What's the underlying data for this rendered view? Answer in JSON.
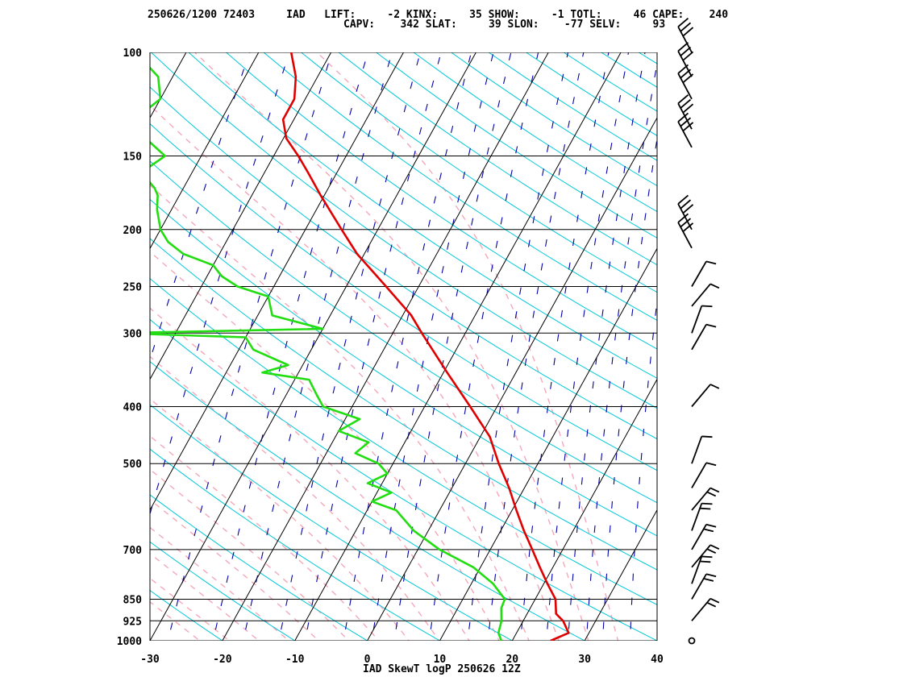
{
  "header": {
    "line1": "250626/1200 72403     IAD   LIFT:     -2 KINX:     35 SHOW:     -1 TOTL:     46 CAPE:    240",
    "line2": "CAPV:    342 SLAT:     39 SLON:    -77 SELV:     93"
  },
  "footer": "IAD SkewT logP 250626 12Z",
  "colors": {
    "temperature": "#e00000",
    "dewpoint": "#22dd11",
    "isotherm": "#000000",
    "dry_adiabat": "#00c8d8",
    "moist_adiabat": "#f4a8b8",
    "mixing_ratio": "#0000aa",
    "isobar": "#000000"
  },
  "chart_data": {
    "type": "line",
    "title": "IAD SkewT logP 250626 12Z",
    "xlabel": "",
    "ylabel": "",
    "x_ticks": [
      -30,
      -20,
      -10,
      0,
      10,
      20,
      30,
      40
    ],
    "xlim": [
      -30,
      40
    ],
    "y_ticks": [
      100,
      150,
      200,
      250,
      300,
      400,
      500,
      700,
      850,
      925,
      1000
    ],
    "ylim": [
      1000,
      100
    ],
    "y_scale": "log",
    "series": [
      {
        "key": "temperature",
        "points": [
          [
            1000,
            25.3
          ],
          [
            970,
            27.2
          ],
          [
            925,
            25.5
          ],
          [
            900,
            24.0
          ],
          [
            850,
            22.8
          ],
          [
            800,
            20.5
          ],
          [
            750,
            18.2
          ],
          [
            700,
            15.8
          ],
          [
            650,
            13.2
          ],
          [
            600,
            10.6
          ],
          [
            550,
            7.9
          ],
          [
            500,
            4.6
          ],
          [
            450,
            1.3
          ],
          [
            400,
            -3.7
          ],
          [
            350,
            -9.5
          ],
          [
            300,
            -16.0
          ],
          [
            280,
            -18.8
          ],
          [
            250,
            -24.5
          ],
          [
            220,
            -31.0
          ],
          [
            200,
            -35.0
          ],
          [
            175,
            -40.5
          ],
          [
            160,
            -44.0
          ],
          [
            150,
            -46.6
          ],
          [
            140,
            -49.6
          ],
          [
            130,
            -51.5
          ],
          [
            120,
            -51.5
          ],
          [
            110,
            -53.0
          ],
          [
            100,
            -55.5
          ]
        ]
      },
      {
        "key": "dewpoint",
        "points": [
          [
            1000,
            18.5
          ],
          [
            970,
            17.5
          ],
          [
            925,
            17.0
          ],
          [
            880,
            16.0
          ],
          [
            850,
            15.8
          ],
          [
            800,
            13.0
          ],
          [
            750,
            9.0
          ],
          [
            700,
            3.0
          ],
          [
            650,
            -2.0
          ],
          [
            600,
            -6.0
          ],
          [
            580,
            -10.0
          ],
          [
            560,
            -8.0
          ],
          [
            540,
            -12.0
          ],
          [
            520,
            -10.0
          ],
          [
            500,
            -12.0
          ],
          [
            480,
            -16.0
          ],
          [
            460,
            -15.0
          ],
          [
            440,
            -20.0
          ],
          [
            420,
            -18.0
          ],
          [
            400,
            -24.0
          ],
          [
            380,
            -26.0
          ],
          [
            360,
            -28.0
          ],
          [
            350,
            -35.0
          ],
          [
            340,
            -32.0
          ],
          [
            320,
            -38.0
          ],
          [
            305,
            -40.0
          ],
          [
            300,
            -58.0
          ],
          [
            295,
            -30.0
          ],
          [
            280,
            -38.0
          ],
          [
            260,
            -40.0
          ],
          [
            250,
            -45.0
          ],
          [
            240,
            -48.0
          ],
          [
            230,
            -50.0
          ],
          [
            220,
            -55.0
          ],
          [
            210,
            -58.0
          ],
          [
            200,
            -60.0
          ],
          [
            185,
            -62.0
          ],
          [
            175,
            -63.0
          ],
          [
            170,
            -64.0
          ],
          [
            160,
            -67.0
          ],
          [
            150,
            -65.0
          ],
          [
            140,
            -69.0
          ],
          [
            130,
            -72.0
          ],
          [
            120,
            -70.0
          ],
          [
            110,
            -72.0
          ],
          [
            100,
            -77.0
          ]
        ]
      }
    ],
    "wind_pressures": [
      100,
      110,
      120,
      135,
      145,
      200,
      215,
      250,
      270,
      300,
      320,
      400,
      500,
      550,
      600,
      650,
      700,
      750,
      800,
      850,
      925,
      1000
    ],
    "grid": true,
    "legend": "none"
  }
}
